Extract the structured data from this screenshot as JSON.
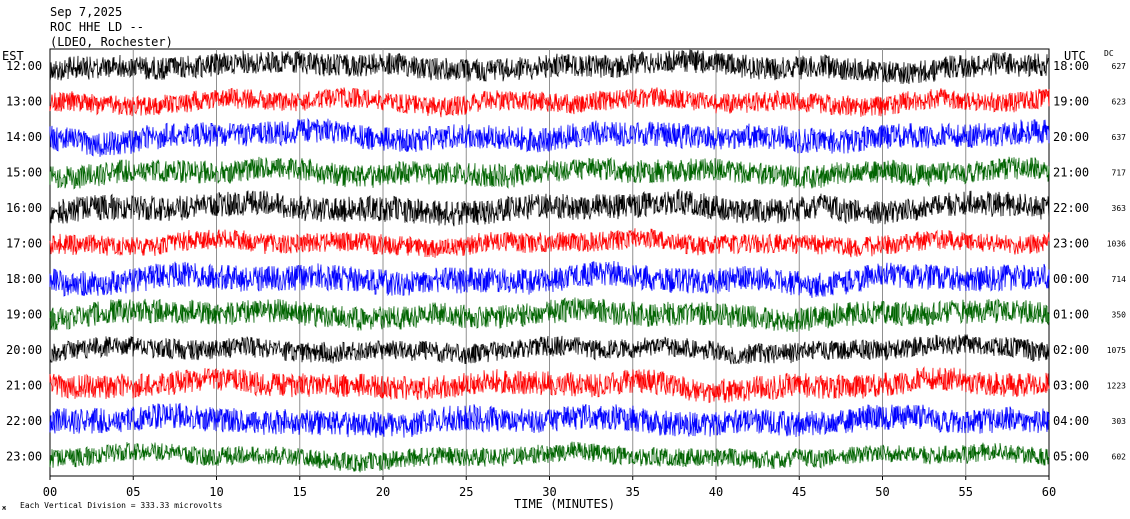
{
  "header": {
    "date": "Sep 7,2025",
    "station": "ROC HHE LD --",
    "network": "(LDEO, Rochester)"
  },
  "left_zone": "EST",
  "right_zone": "UTC",
  "dc_header": "DC",
  "xlabel": "TIME (MINUTES)",
  "footnote": "Each Vertical Division =  333.33 microvolts",
  "chart_data": {
    "type": "line",
    "title": "",
    "xlabel": "TIME (MINUTES)",
    "ylabel": "",
    "xlim": [
      0,
      60
    ],
    "x_ticks": [
      "00",
      "05",
      "10",
      "15",
      "20",
      "25",
      "30",
      "35",
      "40",
      "45",
      "50",
      "55",
      "60"
    ],
    "grid": "vertical lines every 5 minutes",
    "trace_colors": [
      "#000000",
      "#ff0000",
      "#0000ff",
      "#006400"
    ],
    "series": [
      {
        "est": "12:00",
        "utc": "18:00",
        "dc": "627"
      },
      {
        "est": "13:00",
        "utc": "19:00",
        "dc": "623"
      },
      {
        "est": "14:00",
        "utc": "20:00",
        "dc": "637"
      },
      {
        "est": "15:00",
        "utc": "21:00",
        "dc": "717"
      },
      {
        "est": "16:00",
        "utc": "22:00",
        "dc": "363"
      },
      {
        "est": "17:00",
        "utc": "23:00",
        "dc": "1036"
      },
      {
        "est": "18:00",
        "utc": "00:00",
        "dc": "714"
      },
      {
        "est": "19:00",
        "utc": "01:00",
        "dc": "350"
      },
      {
        "est": "20:00",
        "utc": "02:00",
        "dc": "1075"
      },
      {
        "est": "21:00",
        "utc": "03:00",
        "dc": "1223"
      },
      {
        "est": "22:00",
        "utc": "04:00",
        "dc": "303"
      },
      {
        "est": "23:00",
        "utc": "05:00",
        "dc": "602"
      }
    ]
  }
}
